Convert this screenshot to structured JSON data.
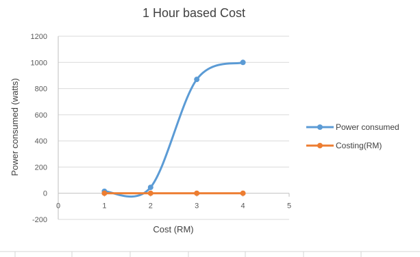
{
  "chart_data": {
    "type": "line",
    "title": "1 Hour based Cost",
    "xlabel": "Cost (RM)",
    "ylabel": "Power consumed (watts)",
    "xlim": [
      0,
      5
    ],
    "ylim": [
      -200,
      1200
    ],
    "xticks": [
      "0",
      "1",
      "2",
      "3",
      "4",
      "5"
    ],
    "yticks": [
      "-200",
      "0",
      "200",
      "400",
      "600",
      "800",
      "1000",
      "1200"
    ],
    "grid": true,
    "legend_position": "right",
    "smoothed": true,
    "series": [
      {
        "name": "Power consumed",
        "color": "#5b9bd5",
        "x": [
          1,
          2,
          3,
          4
        ],
        "y": [
          15,
          45,
          870,
          1000
        ]
      },
      {
        "name": "Costing(RM)",
        "color": "#ed7d31",
        "x": [
          1,
          2,
          3,
          4
        ],
        "y": [
          0,
          0,
          0,
          0
        ]
      }
    ]
  }
}
